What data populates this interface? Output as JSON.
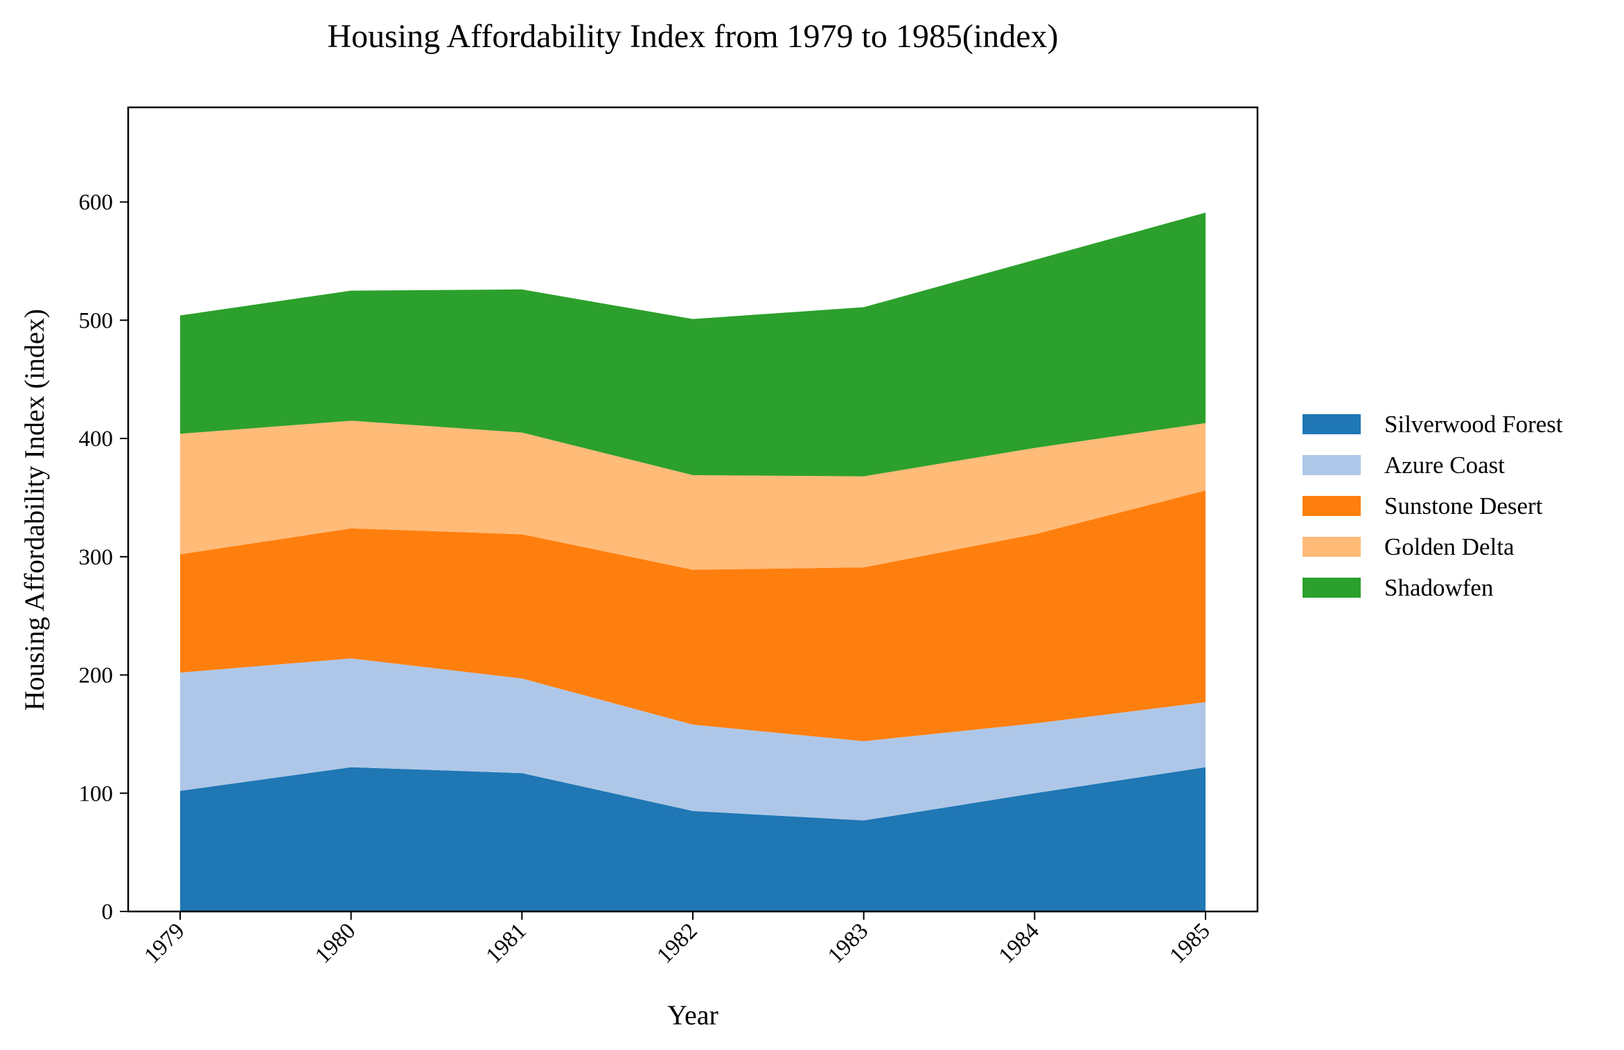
{
  "chart_data": {
    "type": "area",
    "stacked": true,
    "title": "Housing Affordability Index from 1979 to 1985(index)",
    "xlabel": "Year",
    "ylabel": "Housing Affordability Index (index)",
    "categories": [
      "1979",
      "1980",
      "1981",
      "1982",
      "1983",
      "1984",
      "1985"
    ],
    "ylim": [
      0,
      680
    ],
    "yticks": [
      0,
      100,
      200,
      300,
      400,
      500,
      600
    ],
    "grid": false,
    "legend_position": "right",
    "series": [
      {
        "name": "Silverwood Forest",
        "color": "#1f77b4",
        "values": [
          102,
          122,
          117,
          85,
          77,
          100,
          122
        ]
      },
      {
        "name": "Azure Coast",
        "color": "#aec7e8",
        "values": [
          100,
          92,
          80,
          73,
          67,
          59,
          55
        ]
      },
      {
        "name": "Sunstone Desert",
        "color": "#ff7f0e",
        "values": [
          100,
          110,
          122,
          131,
          147,
          160,
          179
        ]
      },
      {
        "name": "Golden Delta",
        "color": "#ffbb78",
        "values": [
          102,
          91,
          86,
          80,
          77,
          73,
          57
        ]
      },
      {
        "name": "Shadowfen",
        "color": "#2ca02c",
        "values": [
          100,
          110,
          121,
          132,
          143,
          159,
          178
        ]
      }
    ]
  }
}
